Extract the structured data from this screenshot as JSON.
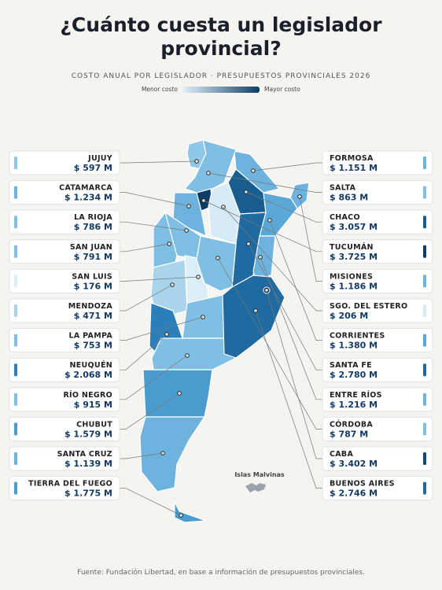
{
  "header": {
    "title_lines": [
      "¿Cuánto cuesta un legislador",
      "provincial?"
    ],
    "subtitle": "COSTO ANUAL POR LEGISLADOR · PRESUPUESTOS PROVINCIALES 2026"
  },
  "legend": {
    "low": "Menor costo",
    "high": "Mayor costo"
  },
  "left_cards": [
    {
      "name": "JUJUY",
      "cost": "$ 597 M",
      "color": "#8fc7e6"
    },
    {
      "name": "CATAMARCA",
      "cost": "$ 1.234 M",
      "color": "#6db3dd"
    },
    {
      "name": "LA RIOJA",
      "cost": "$ 786 M",
      "color": "#7fbfe3"
    },
    {
      "name": "SAN JUAN",
      "cost": "$ 791 M",
      "color": "#7fbfe3"
    },
    {
      "name": "SAN LUIS",
      "cost": "$ 176 M",
      "color": "#dceef8"
    },
    {
      "name": "MENDOZA",
      "cost": "$ 471 M",
      "color": "#a9d4ec"
    },
    {
      "name": "LA PAMPA",
      "cost": "$ 753 M",
      "color": "#7fbfe3"
    },
    {
      "name": "NEUQUÉN",
      "cost": "$ 2.068 M",
      "color": "#2c7fb8"
    },
    {
      "name": "RÍO NEGRO",
      "cost": "$ 915 M",
      "color": "#7fbfe3"
    },
    {
      "name": "CHUBUT",
      "cost": "$ 1.579 M",
      "color": "#4a9ccf"
    },
    {
      "name": "SANTA CRUZ",
      "cost": "$ 1.139 M",
      "color": "#6db3dd"
    },
    {
      "name": "TIERRA DEL FUEGO",
      "cost": "$ 1.775 M",
      "color": "#4a9ccf"
    }
  ],
  "right_cards": [
    {
      "name": "FORMOSA",
      "cost": "$ 1.151 M",
      "color": "#6db3dd"
    },
    {
      "name": "SALTA",
      "cost": "$ 863 M",
      "color": "#7fbfe3"
    },
    {
      "name": "CHACO",
      "cost": "$ 3.057 M",
      "color": "#185d90"
    },
    {
      "name": "TUCUMÁN",
      "cost": "$ 3.725 M",
      "color": "#0d3d66"
    },
    {
      "name": "MISIONES",
      "cost": "$ 1.186 M",
      "color": "#6db3dd"
    },
    {
      "name": "SGO. DEL ESTERO",
      "cost": "$ 206 M",
      "color": "#d6ebf6"
    },
    {
      "name": "CORRIENTES",
      "cost": "$ 1.380 M",
      "color": "#5aa8d7"
    },
    {
      "name": "SANTA FE",
      "cost": "$ 2.780 M",
      "color": "#1f6aa0"
    },
    {
      "name": "ENTRE RÍOS",
      "cost": "$ 1.216 M",
      "color": "#6db3dd"
    },
    {
      "name": "CÓRDOBA",
      "cost": "$ 787 M",
      "color": "#7fbfe3"
    },
    {
      "name": "CABA",
      "cost": "$ 3.402 M",
      "color": "#114a78"
    },
    {
      "name": "BUENOS AIRES",
      "cost": "$ 2.746 M",
      "color": "#1f6aa0"
    }
  ],
  "map_label": "Islas Malvinas",
  "source": "Fuente: Fundación Libertad, en base a información de presupuestos provinciales."
}
